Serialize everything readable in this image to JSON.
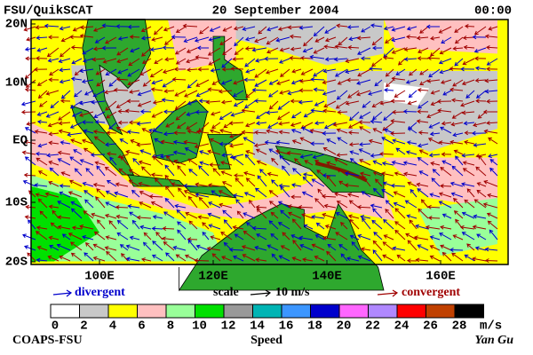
{
  "header": {
    "left": "FSU/QuikSCAT",
    "center": "20 September 2004",
    "right": "00:00"
  },
  "lat_labels": [
    "20N",
    "10N",
    "EQ",
    "10S",
    "20S"
  ],
  "lon_labels": [
    "100E",
    "120E",
    "140E",
    "160E"
  ],
  "legend": {
    "divergent": "divergent",
    "scale": "scale",
    "scale_value": "10 m/s",
    "convergent": "convergent"
  },
  "colorbar": {
    "ticks": [
      0,
      2,
      4,
      6,
      8,
      10,
      12,
      14,
      16,
      18,
      20,
      22,
      24,
      26,
      28
    ],
    "unit": "m/s",
    "label": "Speed",
    "colors": [
      "#ffffff",
      "#c8c8c8",
      "#ffff00",
      "#ffc0c0",
      "#99ff99",
      "#00e000",
      "#999999",
      "#00b4b4",
      "#3c96ff",
      "#0000cc",
      "#ff66ff",
      "#b088ff",
      "#ff0000",
      "#c04000",
      "#000000"
    ]
  },
  "footer": {
    "left": "COAPS-FSU",
    "right": "Yan Gu"
  }
}
